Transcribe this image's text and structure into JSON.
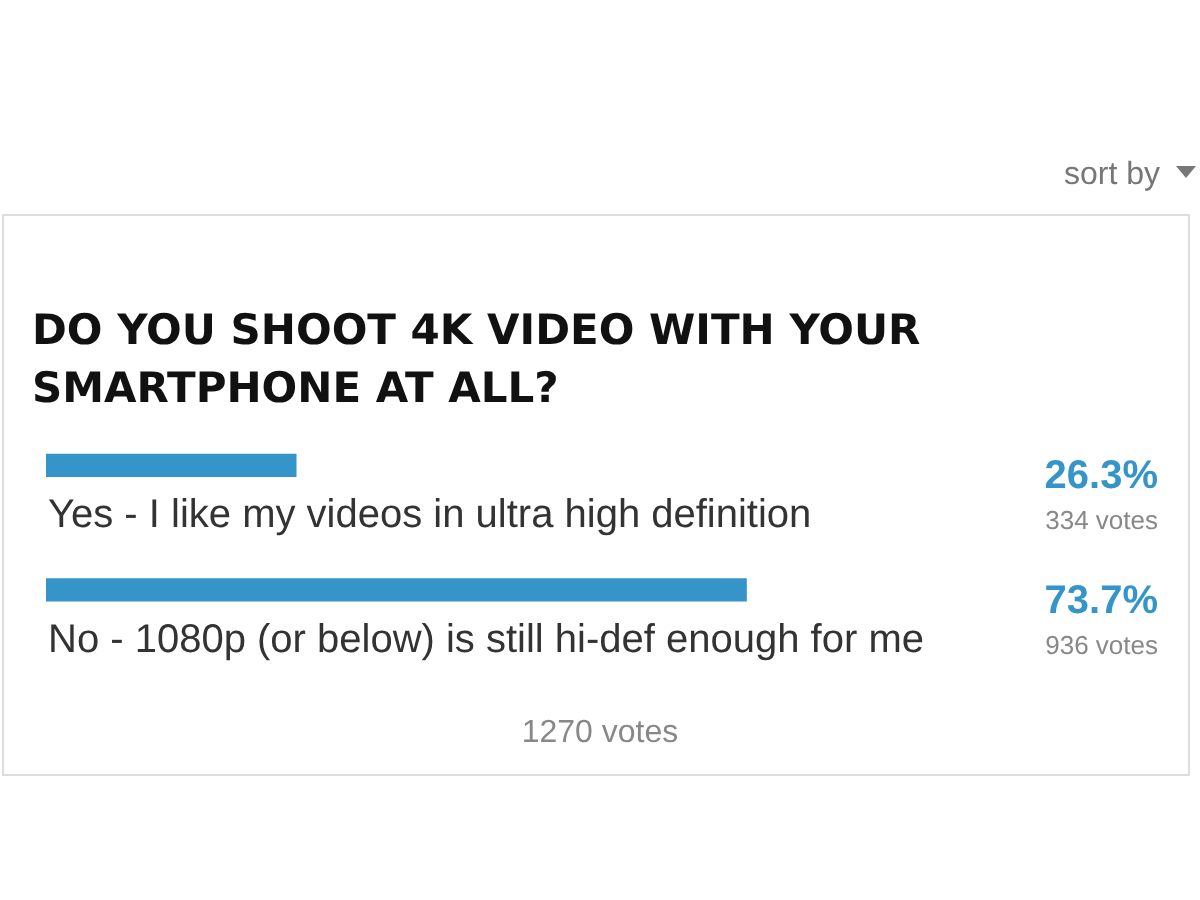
{
  "chart_data": {
    "type": "bar",
    "orientation": "horizontal",
    "title": "DO YOU SHOOT 4K VIDEO WITH YOUR SMARTPHONE AT ALL?",
    "categories": [
      "Yes - I like my videos in ultra high definition",
      "No - 1080p (or below) is still hi-def enough for me"
    ],
    "values": [
      26.3,
      73.7
    ],
    "color": "#3595c8",
    "value_labels": [
      "26.3%",
      "73.7%"
    ],
    "tick_labels": "y",
    "annotations": [
      "334 votes",
      "936 votes",
      "1270 votes",
      "sort by"
    ]
  }
}
